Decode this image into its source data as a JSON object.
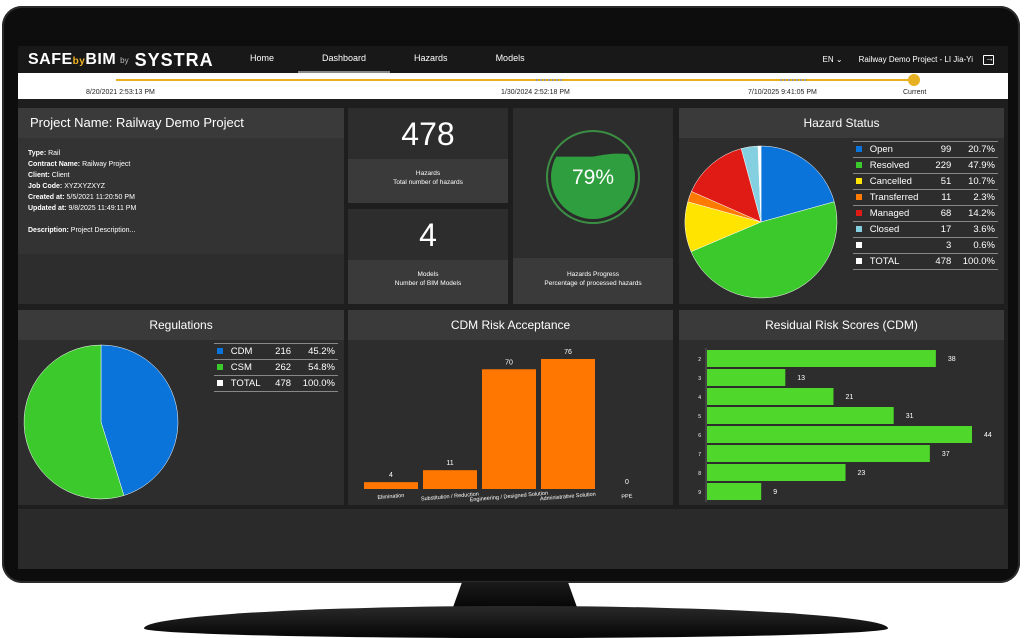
{
  "app": {
    "logo_safe_prefix": "SAFE",
    "logo_safe_by": "by",
    "logo_safe_suffix": "BIM",
    "logo_by": "by",
    "logo_brand": "SYSTRA"
  },
  "nav": {
    "tabs": [
      {
        "label": "Home"
      },
      {
        "label": "Dashboard",
        "active": true
      },
      {
        "label": "Hazards"
      },
      {
        "label": "Models"
      }
    ],
    "language": "EN",
    "project_user": "Railway Demo Project - LI Jia-Yi",
    "logout_icon": "logout-icon"
  },
  "timeline": {
    "labels": [
      "8/20/2021 2:53:13 PM",
      "1/30/2024 2:52:18 PM",
      "7/10/2025 9:41:05 PM",
      "Current"
    ]
  },
  "project": {
    "title": "Project Name: Railway Demo Project",
    "fields": [
      {
        "label": "Type:",
        "value": "Rail"
      },
      {
        "label": "Contract Name:",
        "value": "Railway Project"
      },
      {
        "label": "Client:",
        "value": "Client"
      },
      {
        "label": "Job Code:",
        "value": "XYZXYZXYZ"
      },
      {
        "label": "Created at:",
        "value": "5/5/2021 11:20:50 PM"
      },
      {
        "label": "Updated at:",
        "value": "9/8/2025 11:49:11 PM"
      }
    ],
    "description_label": "Description:",
    "description_value": "Project Description..."
  },
  "stats": {
    "hazards": {
      "value": "478",
      "title": "Hazards",
      "subtitle": "Total number of hazards"
    },
    "models": {
      "value": "4",
      "title": "Models",
      "subtitle": "Number of BIM Models"
    },
    "progress": {
      "value": "79%",
      "fraction": 0.79,
      "title": "Hazards Progress",
      "subtitle": "Percentage of processed hazards"
    }
  },
  "colors": {
    "blue": "#0a74da",
    "green": "#3cc92c",
    "yellow": "#ffe400",
    "orange": "#ff7a00",
    "red": "#e01a14",
    "lightblue": "#84d0e0",
    "white": "#ffffff",
    "bar_orange": "#ff7700",
    "bar_green": "#4fd82b"
  },
  "hazard_status": {
    "title": "Hazard Status",
    "rows": [
      {
        "label": "Open",
        "count": "99",
        "pct": "20.7%",
        "color": "#0a74da",
        "value": 99
      },
      {
        "label": "Resolved",
        "count": "229",
        "pct": "47.9%",
        "color": "#3cc92c",
        "value": 229
      },
      {
        "label": "Cancelled",
        "count": "51",
        "pct": "10.7%",
        "color": "#ffe400",
        "value": 51
      },
      {
        "label": "Transferred",
        "count": "11",
        "pct": "2.3%",
        "color": "#ff7a00",
        "value": 11
      },
      {
        "label": "Managed",
        "count": "68",
        "pct": "14.2%",
        "color": "#e01a14",
        "value": 68
      },
      {
        "label": "Closed",
        "count": "17",
        "pct": "3.6%",
        "color": "#84d0e0",
        "value": 17
      },
      {
        "label": "",
        "count": "3",
        "pct": "0.6%",
        "color": "#ffffff",
        "value": 3
      },
      {
        "label": "TOTAL",
        "count": "478",
        "pct": "100.0%",
        "color": "#ffffff"
      }
    ]
  },
  "regulations": {
    "title": "Regulations",
    "rows": [
      {
        "label": "CDM",
        "count": "216",
        "pct": "45.2%",
        "color": "#0a74da",
        "value": 216
      },
      {
        "label": "CSM",
        "count": "262",
        "pct": "54.8%",
        "color": "#3cc92c",
        "value": 262
      },
      {
        "label": "TOTAL",
        "count": "478",
        "pct": "100.0%",
        "color": "#ffffff"
      }
    ]
  },
  "chart_data": [
    {
      "type": "pie",
      "title": "Hazard Status",
      "categories": [
        "Open",
        "Resolved",
        "Cancelled",
        "Transferred",
        "Managed",
        "Closed",
        ""
      ],
      "values": [
        99,
        229,
        51,
        11,
        68,
        17,
        3
      ]
    },
    {
      "type": "pie",
      "title": "Regulations",
      "categories": [
        "CDM",
        "CSM"
      ],
      "values": [
        216,
        262
      ]
    },
    {
      "type": "bar",
      "title": "CDM Risk Acceptance",
      "categories": [
        "Elimination",
        "Substitution / Reduction",
        "Engineering / Designed Solution",
        "Administrative Solution",
        "PPE"
      ],
      "values": [
        4,
        11,
        70,
        76,
        0
      ],
      "ylim": [
        0,
        76
      ]
    },
    {
      "type": "bar",
      "orientation": "horizontal",
      "title": "Residual Risk Scores (CDM)",
      "categories": [
        "2",
        "3",
        "4",
        "5",
        "6",
        "7",
        "8",
        "9"
      ],
      "values": [
        38,
        13,
        21,
        31,
        44,
        37,
        23,
        9
      ],
      "xlim": [
        0,
        44
      ]
    }
  ]
}
